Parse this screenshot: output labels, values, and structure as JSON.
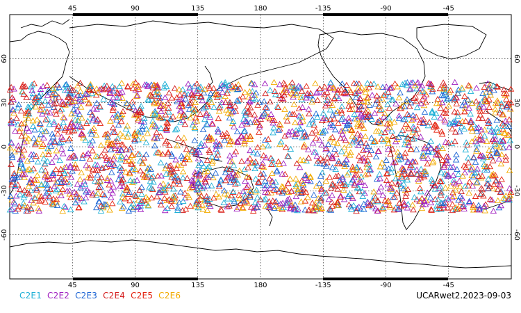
{
  "map": {
    "lon_ticks_top": [
      "45",
      "90",
      "135",
      "180",
      "-135",
      "-90",
      "-45"
    ],
    "lon_ticks_bottom": [
      "45",
      "90",
      "135",
      "180",
      "-135",
      "-90",
      "-45"
    ],
    "lat_ticks_left": [
      "60",
      "30",
      "0",
      "-30",
      "-60"
    ],
    "lat_ticks_right": [
      "60",
      "30",
      "0",
      "-30",
      "-60"
    ],
    "projection": "cylindrical equidistant, centered on 180",
    "lon_range": [
      0,
      360
    ],
    "lat_range": [
      -90,
      90
    ],
    "observation_lat_band": [
      -45,
      45
    ]
  },
  "legend": [
    {
      "label": "C2E1",
      "color": "#1fb0d6"
    },
    {
      "label": "C2E2",
      "color": "#a020c0"
    },
    {
      "label": "C2E3",
      "color": "#1a63d4"
    },
    {
      "label": "C2E4",
      "color": "#d41d1d"
    },
    {
      "label": "C2E5",
      "color": "#e3220f"
    },
    {
      "label": "C2E6",
      "color": "#f2ab00"
    }
  ],
  "footer": {
    "label": "UCARwet2.2023-09-03"
  }
}
